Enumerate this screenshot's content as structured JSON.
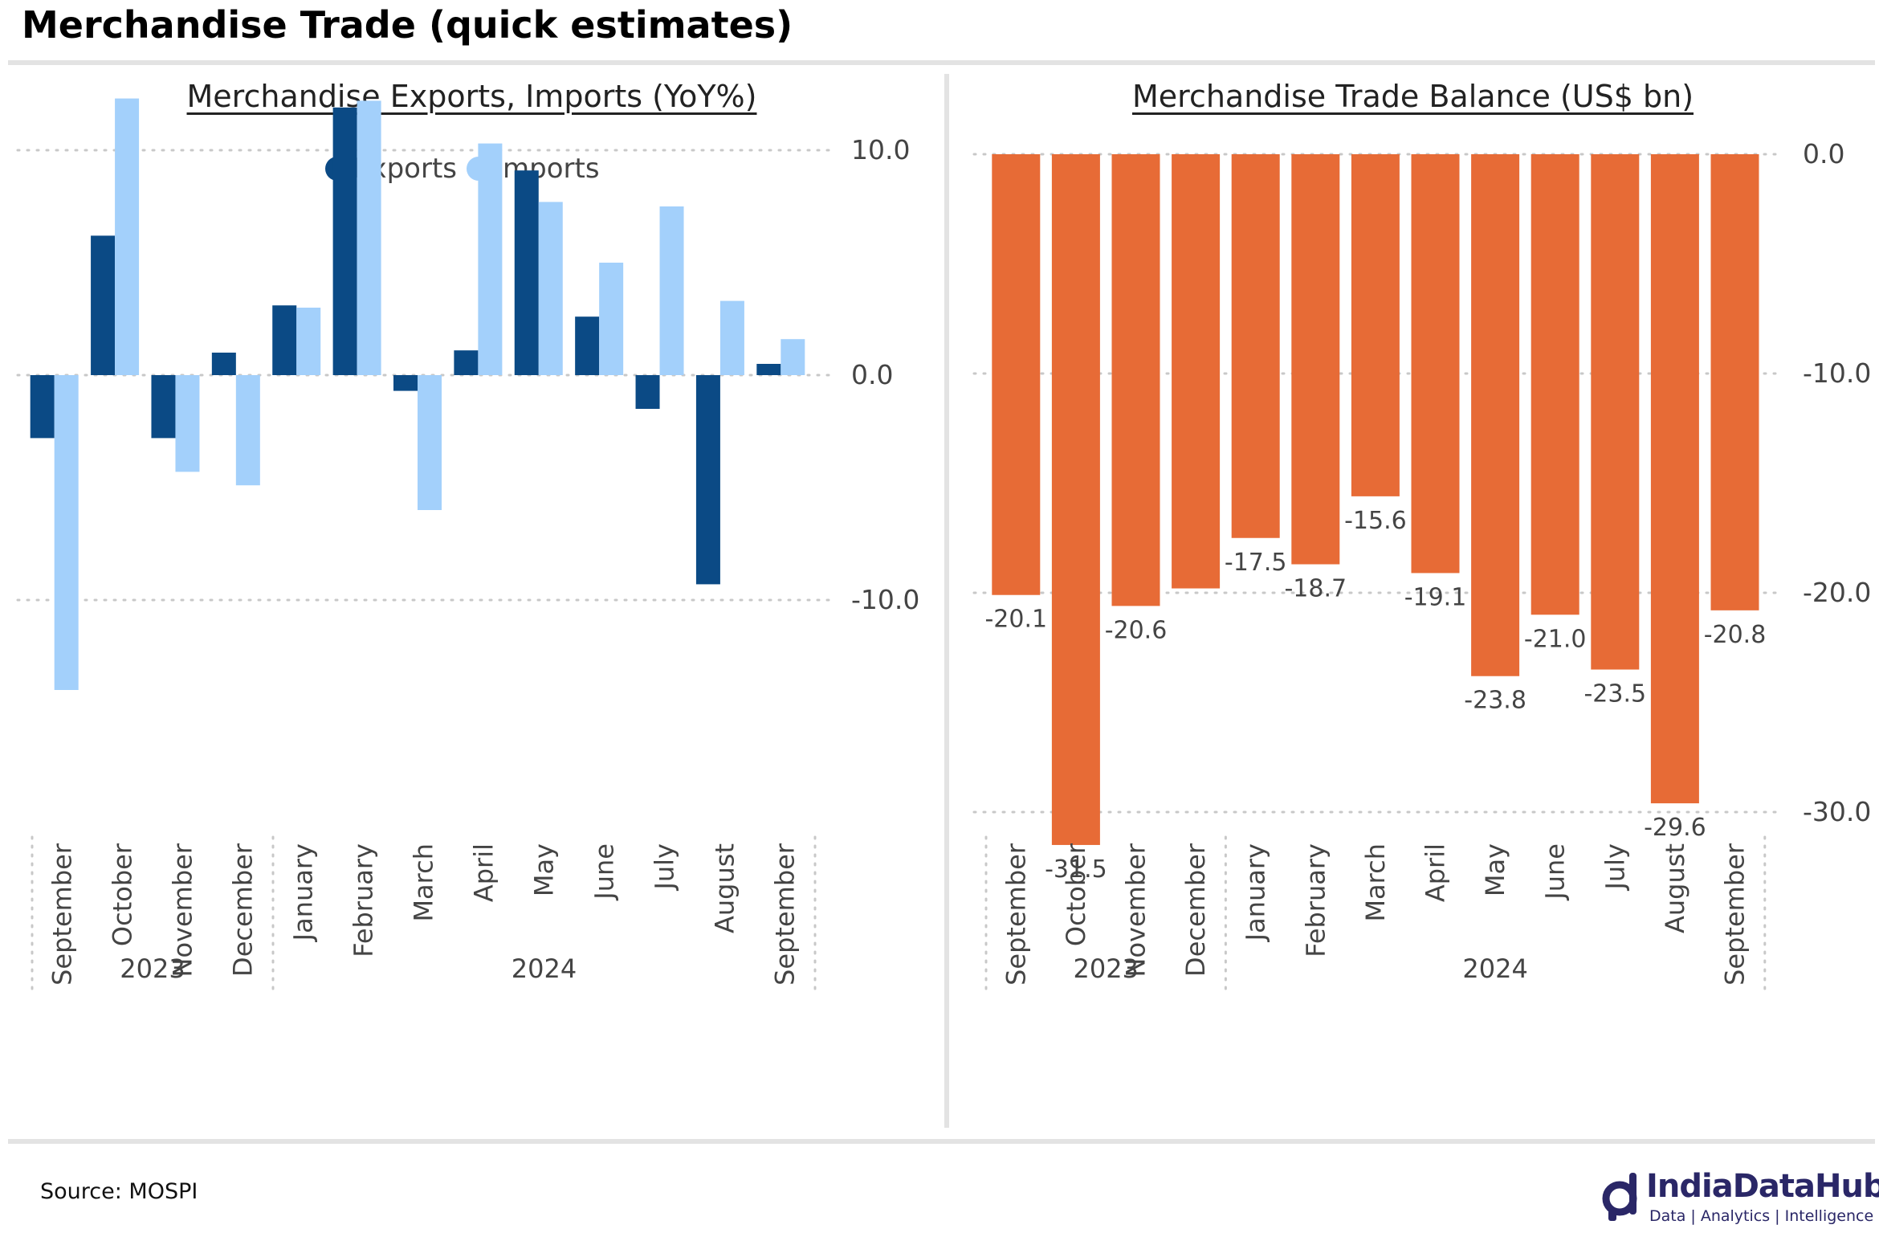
{
  "page": {
    "title": "Merchandise Trade (quick estimates)",
    "source": "Source: MOSPI",
    "logo_name": "IndiaDataHub",
    "logo_tagline": "Data | Analytics | Intelligence"
  },
  "colors": {
    "exports": "#0b4a85",
    "imports": "#a3d0fb",
    "balance": "#e76b36",
    "grid": "#c8c8c8",
    "text": "#444444"
  },
  "chart_data": [
    {
      "type": "bar",
      "title": "Merchandise Exports, Imports (YoY%)",
      "categories": [
        "September",
        "October",
        "November",
        "December",
        "January",
        "February",
        "March",
        "April",
        "May",
        "June",
        "July",
        "August",
        "September"
      ],
      "groups": [
        {
          "label": "2023",
          "count": 4
        },
        {
          "label": "2024",
          "count": 9
        }
      ],
      "series": [
        {
          "name": "Exports",
          "values": [
            -2.8,
            6.2,
            -2.8,
            1.0,
            3.1,
            11.9,
            -0.7,
            1.1,
            9.1,
            2.6,
            -1.5,
            -9.3,
            0.5
          ]
        },
        {
          "name": "Imports",
          "values": [
            -14.0,
            12.3,
            -4.3,
            -4.9,
            3.0,
            12.2,
            -6.0,
            10.3,
            7.7,
            5.0,
            7.5,
            3.3,
            1.6
          ]
        }
      ],
      "ylim": [
        -14.5,
        18.5
      ],
      "yticks": [
        10.0,
        0.0,
        -10.0
      ],
      "ytick_labels": [
        "10.0",
        "0.0",
        "-10.0"
      ],
      "legend": "top-center",
      "grid": true
    },
    {
      "type": "bar",
      "title": "Merchandise Trade Balance (US$ bn)",
      "categories": [
        "September",
        "October",
        "November",
        "December",
        "January",
        "February",
        "March",
        "April",
        "May",
        "June",
        "July",
        "August",
        "September"
      ],
      "groups": [
        {
          "label": "2023",
          "count": 4
        },
        {
          "label": "2024",
          "count": 9
        }
      ],
      "series": [
        {
          "values": [
            -20.1,
            -31.5,
            -20.6,
            -19.8,
            -17.5,
            -18.7,
            -15.6,
            -19.1,
            -23.8,
            -21.0,
            -23.5,
            -29.6,
            -20.8
          ]
        }
      ],
      "data_labels": [
        "-20.1",
        "-31.5",
        "-20.6",
        "",
        "-17.5",
        "-18.7",
        "-15.6",
        "-19.1",
        "-23.8",
        "-21.0",
        "-23.5",
        "-29.6",
        "-20.8"
      ],
      "ylim": [
        -34,
        0
      ],
      "yticks": [
        0,
        -10,
        -20,
        -30
      ],
      "ytick_labels": [
        "0.0",
        "-10.0",
        "-20.0",
        "-30.0"
      ],
      "grid": true
    }
  ]
}
